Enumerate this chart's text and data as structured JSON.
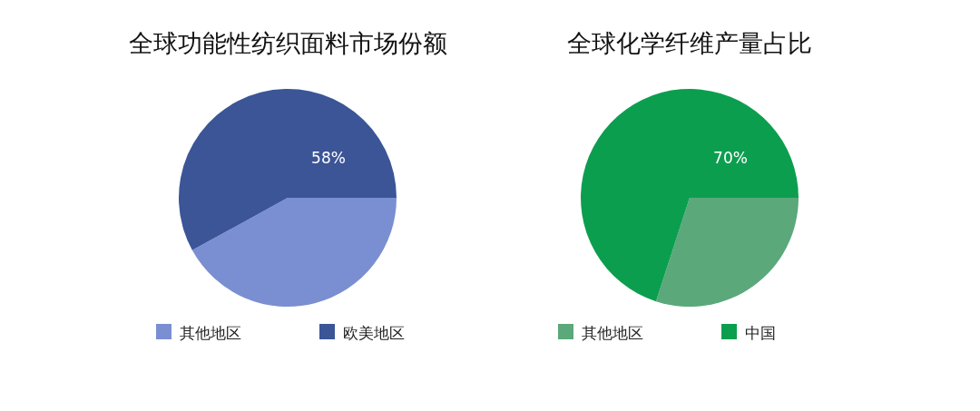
{
  "chart_data": [
    {
      "type": "pie",
      "title": "全球功能性纺织面料市场份额",
      "categories": [
        "其他地区",
        "欧美地区"
      ],
      "values": [
        42,
        58
      ],
      "colors": [
        "#7a8fd1",
        "#3b5597"
      ],
      "value_labels": [
        null,
        "58%"
      ],
      "legend": "bottom"
    },
    {
      "type": "pie",
      "title": "全球化学纤维产量占比",
      "categories": [
        "其他地区",
        "中国"
      ],
      "values": [
        30,
        70
      ],
      "colors": [
        "#5ba87b",
        "#0c9e4f"
      ],
      "value_labels": [
        null,
        "70%"
      ],
      "legend": "bottom"
    }
  ]
}
